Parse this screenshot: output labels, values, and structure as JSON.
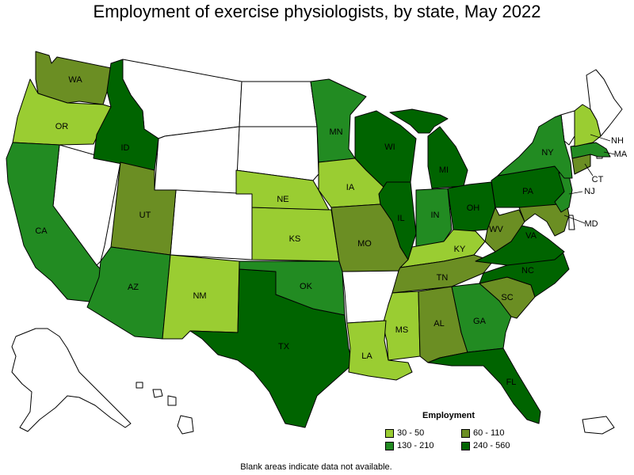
{
  "title": "Employment of exercise physiologists, by state, May 2022",
  "note": "Blank areas indicate data not available.",
  "legend": {
    "title": "Employment",
    "items": [
      {
        "label": "30 - 50",
        "color": "#9acd32"
      },
      {
        "label": "60 - 110",
        "color": "#6b8e23"
      },
      {
        "label": "130 - 210",
        "color": "#228b22"
      },
      {
        "label": "240 - 560",
        "color": "#006400"
      }
    ]
  },
  "colors": {
    "blank": "#ffffff",
    "c30_50": "#9acd32",
    "c60_110": "#6b8e23",
    "c130_210": "#228b22",
    "c240_560": "#006400"
  },
  "states": {
    "WA": {
      "label": "WA",
      "range": "60 - 110"
    },
    "OR": {
      "label": "OR",
      "range": "30 - 50"
    },
    "CA": {
      "label": "CA",
      "range": "130 - 210"
    },
    "ID": {
      "label": "ID",
      "range": "240 - 560"
    },
    "UT": {
      "label": "UT",
      "range": "60 - 110"
    },
    "AZ": {
      "label": "AZ",
      "range": "130 - 210"
    },
    "NM": {
      "label": "NM",
      "range": "30 - 50"
    },
    "TX": {
      "label": "TX",
      "range": "240 - 560"
    },
    "OK": {
      "label": "OK",
      "range": "130 - 210"
    },
    "KS": {
      "label": "KS",
      "range": "30 - 50"
    },
    "NE": {
      "label": "NE",
      "range": "30 - 50"
    },
    "MN": {
      "label": "MN",
      "range": "130 - 210"
    },
    "IA": {
      "label": "IA",
      "range": "30 - 50"
    },
    "MO": {
      "label": "MO",
      "range": "60 - 110"
    },
    "WI": {
      "label": "WI",
      "range": "240 - 560"
    },
    "IL": {
      "label": "IL",
      "range": "240 - 560"
    },
    "MI": {
      "label": "MI",
      "range": "240 - 560"
    },
    "IN": {
      "label": "IN",
      "range": "130 - 210"
    },
    "OH": {
      "label": "OH",
      "range": "240 - 560"
    },
    "KY": {
      "label": "KY",
      "range": "30 - 50"
    },
    "TN": {
      "label": "TN",
      "range": "60 - 110"
    },
    "MS": {
      "label": "MS",
      "range": "30 - 50"
    },
    "AL": {
      "label": "AL",
      "range": "60 - 110"
    },
    "LA": {
      "label": "LA",
      "range": "30 - 50"
    },
    "GA": {
      "label": "GA",
      "range": "130 - 210"
    },
    "FL": {
      "label": "FL",
      "range": "240 - 560"
    },
    "SC": {
      "label": "SC",
      "range": "60 - 110"
    },
    "NC": {
      "label": "NC",
      "range": "240 - 560"
    },
    "VA": {
      "label": "VA",
      "range": "240 - 560"
    },
    "WV": {
      "label": "WV",
      "range": "60 - 110"
    },
    "PA": {
      "label": "PA",
      "range": "240 - 560"
    },
    "NY": {
      "label": "NY",
      "range": "130 - 210"
    },
    "NJ": {
      "label": "NJ",
      "range": "130 - 210"
    },
    "MD": {
      "label": "MD",
      "range": "60 - 110"
    },
    "CT": {
      "label": "CT",
      "range": "60 - 110"
    },
    "MA": {
      "label": "MA",
      "range": "130 - 210"
    },
    "NH": {
      "label": "NH",
      "range": "30 - 50"
    }
  }
}
